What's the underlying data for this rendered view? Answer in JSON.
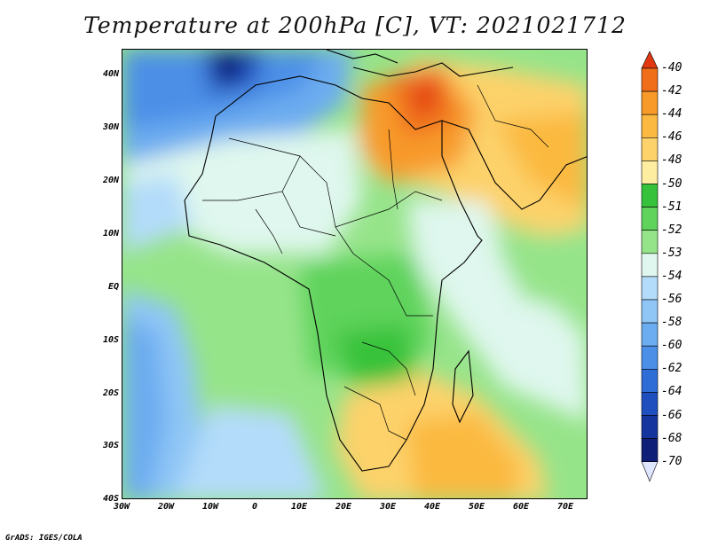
{
  "title": "Temperature at 200hPa [C], VT: 2021021712",
  "footer": "GrADS: IGES/COLA",
  "axes": {
    "y_labels": [
      "40N",
      "30N",
      "20N",
      "10N",
      "EQ",
      "10S",
      "20S",
      "30S",
      "40S"
    ],
    "x_labels": [
      "30W",
      "20W",
      "10W",
      "0",
      "10E",
      "20E",
      "30E",
      "40E",
      "50E",
      "60E",
      "70E"
    ]
  },
  "colorbar": {
    "levels": [
      "-40",
      "-42",
      "-44",
      "-46",
      "-48",
      "-50",
      "-51",
      "-52",
      "-53",
      "-54",
      "-56",
      "-58",
      "-60",
      "-62",
      "-64",
      "-66",
      "-68",
      "-70"
    ],
    "colors": [
      "#e13712",
      "#f06e1a",
      "#f79a2a",
      "#fbb941",
      "#fdd26a",
      "#fdeda1",
      "#37c23b",
      "#5fd35c",
      "#96e48a",
      "#dff7ee",
      "#b3dcfa",
      "#8fc6f6",
      "#6cacf0",
      "#4b8fe7",
      "#2f6dd6",
      "#1f4fbe",
      "#16349d",
      "#0e1f78",
      "#dfe6ff"
    ]
  },
  "colors": {
    "background": "#ffffff",
    "frame": "#000000"
  }
}
